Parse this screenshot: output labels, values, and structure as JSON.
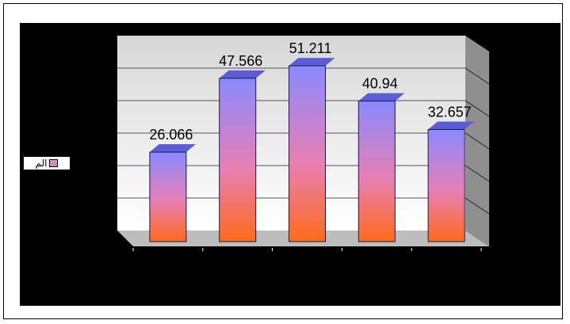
{
  "chart_data": {
    "type": "bar",
    "categories": [
      "",
      "",
      "",
      "",
      ""
    ],
    "values": [
      26.066,
      47.566,
      51.211,
      40.94,
      32.657
    ],
    "value_labels": [
      "26.066",
      "47.566",
      "51.211",
      "40.94",
      "32.657"
    ],
    "title": "",
    "xlabel": "",
    "ylabel": "",
    "ylim": [
      0,
      60
    ],
    "grid": true,
    "legend": {
      "placement": "left",
      "entries": [
        "الم"
      ]
    },
    "colors": {
      "bar_top": "#7f7fff",
      "bar_bottom": "#ff6a1a",
      "plot_background": "#000000",
      "wall": "#e8e8e8",
      "frame": "#ffffff"
    }
  }
}
